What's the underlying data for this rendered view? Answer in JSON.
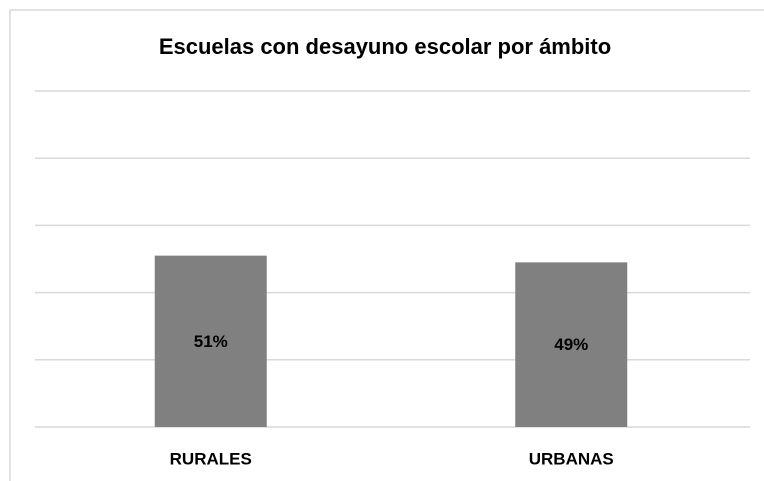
{
  "chart_data": {
    "type": "bar",
    "title": "Escuelas con desayuno escolar por ámbito",
    "categories": [
      "RURALES",
      "URBANAS"
    ],
    "values": [
      51,
      49
    ],
    "value_labels": [
      "51%",
      "49%"
    ],
    "color": "#808080",
    "ylim": [
      0,
      100
    ],
    "yticks": [
      0,
      20,
      40,
      60,
      80,
      100
    ],
    "grid": true
  }
}
